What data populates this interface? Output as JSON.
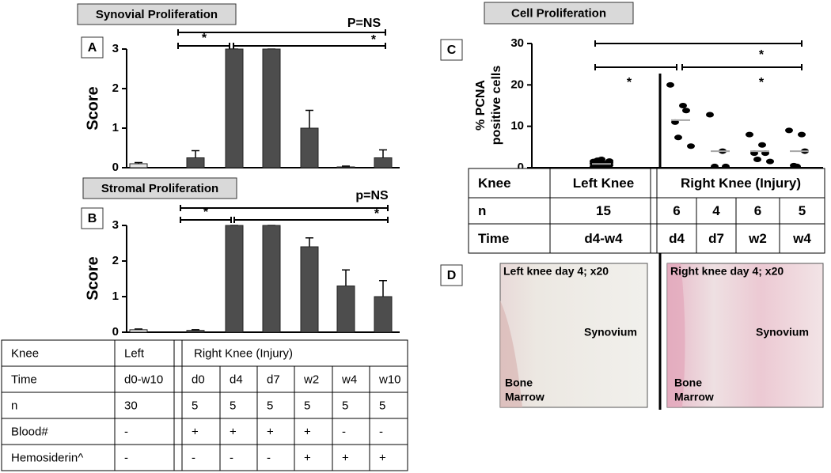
{
  "chart_data": [
    {
      "type": "bar",
      "title": "Synovial Proliferation",
      "panel": "A",
      "y_label": "Score",
      "categories": [
        null,
        null,
        null,
        null,
        null,
        null,
        null
      ],
      "values": [
        0.1,
        0.25,
        3,
        3,
        1,
        0.02,
        0.25
      ],
      "errors": [
        0.03,
        0.18,
        0,
        0,
        0.45,
        0.02,
        0.2
      ],
      "colors": [
        "#e6e6e6",
        "#4d4d4d",
        "#4d4d4d",
        "#4d4d4d",
        "#4d4d4d",
        "#4d4d4d",
        "#4d4d4d"
      ],
      "ylim": [
        0,
        3
      ],
      "yticks": [
        0,
        1,
        2,
        3
      ],
      "comparisons": [
        {
          "label": "P=NS"
        },
        {
          "label": "*"
        },
        {
          "label": "*"
        }
      ]
    },
    {
      "type": "bar",
      "title": "Stromal Proliferation",
      "panel": "B",
      "y_label": "Score",
      "categories": [
        null,
        null,
        null,
        null,
        null,
        null,
        null
      ],
      "values": [
        0.07,
        0.05,
        3,
        3,
        2.4,
        1.3,
        1.0
      ],
      "errors": [
        0.02,
        0.02,
        0,
        0,
        0.25,
        0.45,
        0.45
      ],
      "colors": [
        "#e6e6e6",
        "#4d4d4d",
        "#4d4d4d",
        "#4d4d4d",
        "#4d4d4d",
        "#4d4d4d",
        "#4d4d4d"
      ],
      "ylim": [
        0,
        3
      ],
      "yticks": [
        0,
        1,
        2,
        3
      ],
      "comparisons": [
        {
          "label": "p=NS"
        },
        {
          "label": "*"
        },
        {
          "label": "*"
        }
      ]
    },
    {
      "type": "strip",
      "title": "Cell Proliferation",
      "panel": "C",
      "y_label": [
        "% PCNA",
        "positive cells"
      ],
      "groups": [
        {
          "values": [
            0.3,
            0.5,
            0.8,
            1,
            1.2,
            1.5,
            1.8,
            2,
            0.2,
            0.6,
            1,
            1.4,
            0.4,
            0.9,
            1.6
          ],
          "mean": 0.9
        },
        {
          "values": [
            20,
            15,
            13.8,
            11,
            7.3,
            5.2
          ],
          "mean": 11.5
        },
        {
          "values": [
            12.8,
            4,
            0.3,
            0.3
          ],
          "mean": 4
        },
        {
          "values": [
            8,
            5.5,
            3.5,
            3.5,
            2,
            1.5
          ],
          "mean": 4
        },
        {
          "values": [
            9,
            8,
            4,
            0.5,
            0.3
          ],
          "mean": 4
        }
      ],
      "color": "#000000",
      "mean_color": "#a6a6a6",
      "ylim": [
        0,
        30
      ],
      "yticks": [
        0,
        10,
        20,
        30
      ],
      "comparisons": [
        {
          "label": "*"
        },
        {
          "label": "*"
        },
        {
          "label": "*"
        }
      ]
    }
  ],
  "tables": [
    {
      "rows": [
        [
          "Knee",
          "Left",
          "Right Knee (Injury)"
        ],
        [
          "Time",
          "d0-w10",
          "d0",
          "d4",
          "d7",
          "w2",
          "w4",
          "w10"
        ],
        [
          "n",
          "30",
          "5",
          "5",
          "5",
          "5",
          "5",
          "5"
        ],
        [
          "Blood#",
          "-",
          "+",
          "+",
          "+",
          "+",
          "-",
          "-"
        ],
        [
          "Hemosiderin^",
          "-",
          "-",
          "-",
          "-",
          "+",
          "+",
          "+"
        ]
      ]
    },
    {
      "rows": [
        [
          "Knee",
          "Left Knee",
          "Right Knee (Injury)"
        ],
        [
          "n",
          "15",
          "6",
          "4",
          "6",
          "5"
        ],
        [
          "Time",
          "d4-w4",
          "d4",
          "d7",
          "w2",
          "w4"
        ]
      ]
    }
  ],
  "panel_d": {
    "label": "D",
    "images": [
      {
        "caption": "Left knee day 4; x20",
        "synovium": "Synovium",
        "marrow": [
          "Bone",
          "Marrow"
        ]
      },
      {
        "caption": "Right knee day 4; x20",
        "synovium": "Synovium",
        "marrow": [
          "Bone",
          "Marrow"
        ]
      }
    ]
  }
}
